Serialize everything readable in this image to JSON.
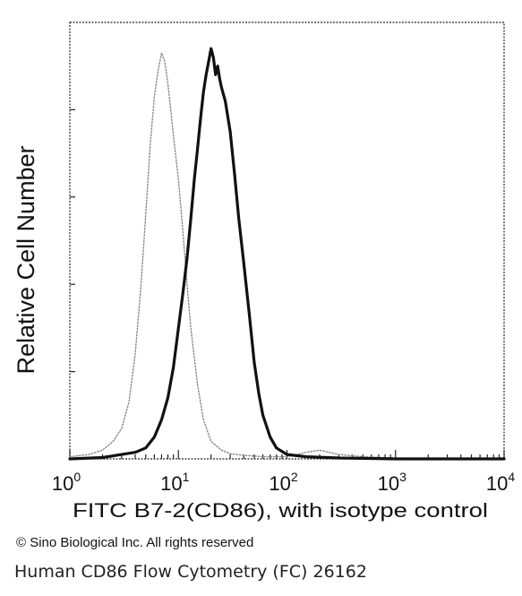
{
  "chart_data": {
    "type": "line",
    "xscale": "log",
    "xlim": [
      1,
      10000
    ],
    "ylim": [
      0,
      100
    ],
    "xlabel": "FITC  B7-2(CD86),  with isotype control",
    "ylabel": "Relative Cell Number",
    "grid": false,
    "legend": "none",
    "x_ticks": [
      {
        "base": "10",
        "exp": "0",
        "value": 1
      },
      {
        "base": "10",
        "exp": "1",
        "value": 10
      },
      {
        "base": "10",
        "exp": "2",
        "value": 100
      },
      {
        "base": "10",
        "exp": "3",
        "value": 1000
      },
      {
        "base": "10",
        "exp": "4",
        "value": 10000
      }
    ],
    "series": [
      {
        "style": "dotted-gray",
        "color": "#8a8a8a",
        "x": [
          1,
          1.5,
          2,
          2.5,
          3,
          3.5,
          4,
          4.5,
          5,
          5.5,
          6,
          6.5,
          7,
          7.5,
          8,
          8.5,
          9,
          10,
          11,
          12,
          13,
          15,
          17,
          20,
          25,
          30,
          40,
          60,
          100,
          150,
          200,
          300,
          500,
          1000,
          3000,
          10000
        ],
        "y": [
          0.5,
          1,
          2,
          4,
          7,
          13,
          24,
          39,
          56,
          72,
          83,
          89,
          93,
          91,
          86,
          80,
          74,
          64,
          52,
          40,
          30,
          17,
          9,
          4,
          2,
          1.2,
          0.8,
          0.5,
          0.5,
          1.5,
          2,
          1,
          0.5,
          0.2,
          0,
          0
        ]
      },
      {
        "style": "solid-black",
        "color": "#111111",
        "x": [
          1,
          2,
          3,
          4,
          5,
          6,
          7,
          8,
          9,
          10,
          11,
          12,
          13,
          14,
          15,
          16,
          17,
          18,
          19,
          20,
          21,
          22,
          23,
          24,
          25,
          27,
          30,
          33,
          36,
          40,
          45,
          50,
          55,
          60,
          70,
          80,
          100,
          150,
          300,
          1000,
          10000
        ],
        "y": [
          0,
          0.3,
          1,
          1.5,
          2.5,
          5,
          9,
          14,
          21,
          30,
          38,
          46,
          55,
          64,
          71,
          78,
          84,
          88,
          91,
          94,
          92,
          88,
          90,
          87,
          85,
          82,
          75,
          65,
          55,
          45,
          33,
          22,
          15,
          10,
          5,
          2.5,
          1,
          0.5,
          0.2,
          0,
          0
        ]
      }
    ]
  },
  "footer": {
    "copyright": "© Sino Biological Inc. All rights reserved",
    "caption": "Human CD86 Flow Cytometry (FC) 26162"
  }
}
